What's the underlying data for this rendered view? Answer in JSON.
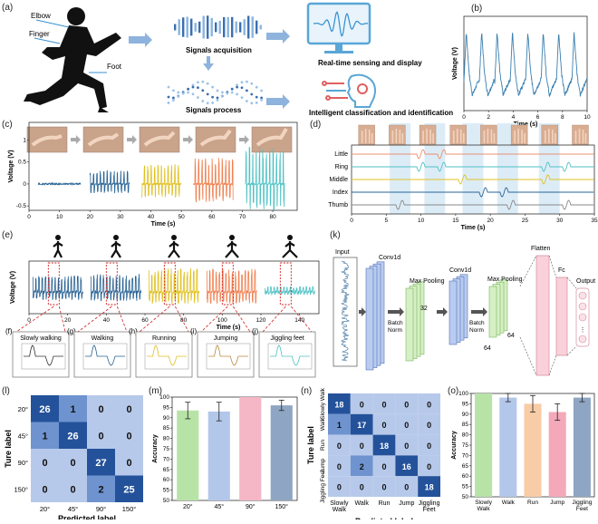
{
  "panel_a": {
    "letter": "(a)",
    "body_labels": [
      "Elbow",
      "Finger",
      "Foot"
    ],
    "steps": [
      "Signals acquisition",
      "Signals process"
    ],
    "outputs": [
      "Real-time sensing and display",
      "Intelligent classification and identification"
    ]
  },
  "panel_b": {
    "letter": "(b)"
  },
  "panel_c": {
    "letter": "(c)"
  },
  "panel_d": {
    "letter": "(d)",
    "channels": [
      "Little",
      "Ring",
      "Middle",
      "Index",
      "Thumb"
    ]
  },
  "panel_e": {
    "letter": "(e)"
  },
  "panels_fj": [
    {
      "letter": "(f)",
      "title": "Slowly walking"
    },
    {
      "letter": "(g)",
      "title": "Walking"
    },
    {
      "letter": "(h)",
      "title": "Running"
    },
    {
      "letter": "(i)",
      "title": "Jumping"
    },
    {
      "letter": "(j)",
      "title": "Jiggling feet"
    }
  ],
  "panel_k": {
    "letter": "(k)",
    "layers": [
      "Input",
      "Conv1d",
      "Batch Norm",
      "Max Pooling",
      "Conv1d",
      "Batch Norm",
      "Max Pooling",
      "Flatten",
      "Fc",
      "Output"
    ],
    "dims": [
      "32",
      "32",
      "64",
      "64"
    ]
  },
  "panel_l": {
    "letter": "(l)"
  },
  "panel_m": {
    "letter": "(m)"
  },
  "panel_n": {
    "letter": "(n)"
  },
  "panel_o": {
    "letter": "(o)"
  },
  "chart_data": [
    {
      "id": "b",
      "type": "line",
      "xlabel": "Time (s)",
      "ylabel": "Voltage (V)",
      "xlim": [
        0,
        10
      ],
      "ylim": [
        0.4,
        1.6
      ],
      "xticks": [
        0,
        2,
        4,
        6,
        8,
        10
      ],
      "yticks": [
        0.4,
        0.6,
        0.8,
        1.0,
        1.2,
        1.4,
        1.6
      ],
      "series": [
        {
          "color": "#3a7fb0",
          "cycles": 8
        }
      ]
    },
    {
      "id": "c",
      "type": "line",
      "xlabel": "Time (s)",
      "ylabel": "Voltage (V)",
      "xlim": [
        0,
        88
      ],
      "ylim": [
        -0.6,
        1.4
      ],
      "xticks": [
        0,
        10,
        20,
        30,
        40,
        50,
        60,
        70,
        80
      ],
      "yticks": [
        -0.5,
        0.0,
        0.5,
        1.0
      ],
      "series": [
        {
          "x_range": [
            3,
            17
          ],
          "amplitude": 0.02,
          "color": "#2a6494"
        },
        {
          "x_range": [
            20,
            33
          ],
          "amplitude": 0.3,
          "color": "#2a6494"
        },
        {
          "x_range": [
            37,
            50
          ],
          "amplitude": 0.45,
          "color": "#e0c020"
        },
        {
          "x_range": [
            54,
            67
          ],
          "amplitude": 0.6,
          "color": "#f08050"
        },
        {
          "x_range": [
            71,
            84
          ],
          "amplitude": 0.85,
          "color": "#4fc1c4"
        }
      ]
    },
    {
      "id": "d",
      "type": "line",
      "xlabel": "Time (s)",
      "xlim": [
        0,
        35
      ],
      "xticks": [
        0,
        5,
        10,
        15,
        20,
        25,
        30,
        35
      ],
      "series": [
        {
          "name": "Little",
          "color": "#e89070",
          "peaks": [
            10,
            13
          ]
        },
        {
          "name": "Ring",
          "color": "#4fc1c4",
          "peaks": [
            10,
            13,
            28,
            31
          ]
        },
        {
          "name": "Middle",
          "color": "#e0c020",
          "peaks": [
            16,
            28
          ]
        },
        {
          "name": "Index",
          "color": "#2a6494",
          "peaks": [
            19,
            22
          ]
        },
        {
          "name": "Thumb",
          "color": "#888888",
          "peaks": [
            7,
            23,
            31
          ]
        }
      ]
    },
    {
      "id": "e",
      "type": "line",
      "xlabel": "Time (s)",
      "ylabel": "Voltage (V)",
      "xlim": [
        0,
        150
      ],
      "xticks": [
        0,
        20,
        40,
        60,
        80,
        100,
        120,
        140
      ],
      "series": [
        {
          "x_range": [
            2,
            28
          ],
          "color": "#2a6494"
        },
        {
          "x_range": [
            32,
            58
          ],
          "color": "#2a6494"
        },
        {
          "x_range": [
            62,
            88
          ],
          "color": "#e0c020"
        },
        {
          "x_range": [
            92,
            118
          ],
          "color": "#f08050"
        },
        {
          "x_range": [
            122,
            148
          ],
          "color": "#4fc1c4"
        }
      ]
    },
    {
      "id": "l",
      "type": "heatmap",
      "xlabel": "Predicted label",
      "ylabel": "Ture label",
      "categories": [
        "20°",
        "45°",
        "90°",
        "150°"
      ],
      "matrix": [
        [
          26,
          1,
          0,
          0
        ],
        [
          1,
          26,
          0,
          0
        ],
        [
          0,
          0,
          27,
          0
        ],
        [
          0,
          0,
          2,
          25
        ]
      ]
    },
    {
      "id": "m",
      "type": "bar",
      "ylabel": "Accuracy",
      "categories": [
        "20°",
        "45°",
        "90°",
        "150°"
      ],
      "values": [
        93.5,
        93,
        100,
        96
      ],
      "errors": [
        4,
        4.5,
        0,
        2.5
      ],
      "colors": [
        "#b7e3a6",
        "#b3c7eb",
        "#f5b6c6",
        "#8ea6c3"
      ],
      "ylim": [
        50,
        100
      ],
      "yticks": [
        50,
        55,
        60,
        65,
        70,
        75,
        80,
        85,
        90,
        95,
        100
      ]
    },
    {
      "id": "n",
      "type": "heatmap",
      "xlabel": "Predicted label",
      "ylabel": "Ture label",
      "categories": [
        "Slowly Walk",
        "Walk",
        "Run",
        "Jump",
        "Jiggling Feet"
      ],
      "matrix": [
        [
          18,
          0,
          0,
          0,
          0
        ],
        [
          1,
          17,
          0,
          0,
          0
        ],
        [
          0,
          0,
          18,
          0,
          0
        ],
        [
          0,
          2,
          0,
          16,
          0
        ],
        [
          0,
          0,
          0,
          0,
          18
        ]
      ]
    },
    {
      "id": "o",
      "type": "bar",
      "ylabel": "Accuracy",
      "categories": [
        "Slowly Walk",
        "Walk",
        "Run",
        "Jump",
        "Jiggling Feet"
      ],
      "values": [
        100,
        98,
        95,
        91,
        98
      ],
      "errors": [
        0,
        2,
        4,
        4,
        2
      ],
      "colors": [
        "#b7e3a6",
        "#b3c7eb",
        "#f8cca6",
        "#f3a9b9",
        "#8ea6c3"
      ],
      "ylim": [
        50,
        100
      ],
      "yticks": [
        50,
        55,
        60,
        65,
        70,
        75,
        80,
        85,
        90,
        95,
        100
      ]
    }
  ]
}
